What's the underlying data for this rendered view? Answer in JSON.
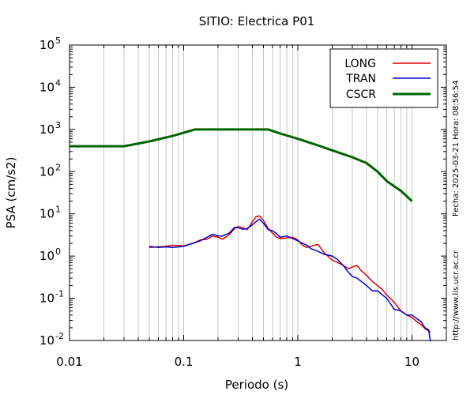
{
  "chart_data": {
    "type": "line",
    "title": "SITIO: Electrica P01",
    "xlabel": "Periodo (s)",
    "ylabel": "PSA (cm/s2)",
    "x_scale": "log",
    "y_scale": "log",
    "xlim": [
      0.01,
      20
    ],
    "ylim": [
      0.01,
      100000
    ],
    "grid": "x-minor-vertical",
    "x_ticks": [
      {
        "value": 0.01,
        "label": "0.01"
      },
      {
        "value": 0.1,
        "label": "0.1"
      },
      {
        "value": 1,
        "label": "1"
      },
      {
        "value": 10,
        "label": "10"
      }
    ],
    "y_ticks": [
      {
        "value": 0.01,
        "base": "10",
        "exp": "-2"
      },
      {
        "value": 0.1,
        "base": "10",
        "exp": "-1"
      },
      {
        "value": 1,
        "base": "10",
        "exp": "0"
      },
      {
        "value": 10,
        "base": "10",
        "exp": "1"
      },
      {
        "value": 100,
        "base": "10",
        "exp": "2"
      },
      {
        "value": 1000,
        "base": "10",
        "exp": "3"
      },
      {
        "value": 10000,
        "base": "10",
        "exp": "4"
      },
      {
        "value": 100000,
        "base": "10",
        "exp": "5"
      }
    ],
    "legend_position": "top-right",
    "side_text": {
      "date": "Fecha: 2025-03-21 Hora: 08:56:54",
      "url": "http://www.lis.ucr.ac.cr"
    },
    "series": [
      {
        "name": "LONG",
        "color": "#e00000",
        "x": [
          0.05,
          0.06,
          0.07,
          0.08,
          0.1,
          0.12,
          0.14,
          0.16,
          0.18,
          0.2,
          0.22,
          0.25,
          0.28,
          0.3,
          0.33,
          0.36,
          0.4,
          0.43,
          0.46,
          0.5,
          0.55,
          0.6,
          0.65,
          0.7,
          0.8,
          0.9,
          1.0,
          1.1,
          1.2,
          1.3,
          1.5,
          1.7,
          2.0,
          2.2,
          2.5,
          2.8,
          3.0,
          3.3,
          3.6,
          4.0,
          4.5,
          5.0,
          5.5,
          6.0,
          7.0,
          8.0,
          9.0,
          10,
          11,
          12,
          13,
          14.5
        ],
        "values": [
          1.6,
          1.65,
          1.7,
          1.8,
          1.75,
          2.0,
          2.4,
          2.5,
          3.0,
          2.8,
          2.5,
          3.2,
          4.5,
          5.0,
          4.7,
          4.2,
          6.5,
          8.5,
          9.0,
          7.0,
          4.5,
          3.5,
          2.8,
          2.6,
          2.7,
          2.8,
          2.4,
          1.8,
          1.6,
          1.7,
          1.9,
          1.2,
          0.8,
          0.72,
          0.6,
          0.5,
          0.55,
          0.6,
          0.45,
          0.35,
          0.25,
          0.2,
          0.16,
          0.12,
          0.08,
          0.05,
          0.04,
          0.035,
          0.028,
          0.024,
          0.019,
          0.016
        ]
      },
      {
        "name": "TRAN",
        "color": "#0000d0",
        "x": [
          0.05,
          0.06,
          0.07,
          0.08,
          0.1,
          0.12,
          0.14,
          0.16,
          0.18,
          0.2,
          0.22,
          0.25,
          0.28,
          0.3,
          0.33,
          0.36,
          0.4,
          0.43,
          0.46,
          0.5,
          0.55,
          0.6,
          0.65,
          0.7,
          0.8,
          0.9,
          1.0,
          1.1,
          1.2,
          1.3,
          1.5,
          1.7,
          2.0,
          2.2,
          2.5,
          2.8,
          3.0,
          3.3,
          3.6,
          4.0,
          4.5,
          5.0,
          5.5,
          6.0,
          7.0,
          8.0,
          9.0,
          10,
          11,
          12,
          13,
          14,
          14.5
        ],
        "values": [
          1.7,
          1.6,
          1.65,
          1.6,
          1.7,
          2.0,
          2.3,
          2.8,
          3.3,
          3.0,
          3.0,
          3.5,
          4.8,
          4.7,
          4.3,
          4.5,
          5.5,
          6.5,
          7.5,
          6.0,
          4.2,
          4.0,
          3.4,
          2.8,
          3.0,
          2.6,
          2.3,
          2.0,
          1.8,
          1.5,
          1.3,
          1.1,
          1.0,
          0.85,
          0.6,
          0.4,
          0.33,
          0.3,
          0.25,
          0.2,
          0.15,
          0.15,
          0.12,
          0.1,
          0.055,
          0.05,
          0.04,
          0.04,
          0.033,
          0.028,
          0.02,
          0.018,
          0.0095
        ]
      },
      {
        "name": "CSCR",
        "color": "#006400",
        "x": [
          0.01,
          0.03,
          0.05,
          0.08,
          0.125,
          0.2,
          0.3,
          0.4,
          0.55,
          0.7,
          1.0,
          1.5,
          2.0,
          3.0,
          4.0,
          5.0,
          6.0,
          8.0,
          10.0
        ],
        "values": [
          400,
          400,
          520,
          700,
          1000,
          1000,
          1000,
          1000,
          1000,
          800,
          600,
          420,
          320,
          220,
          160,
          100,
          60,
          35,
          20
        ]
      }
    ]
  }
}
